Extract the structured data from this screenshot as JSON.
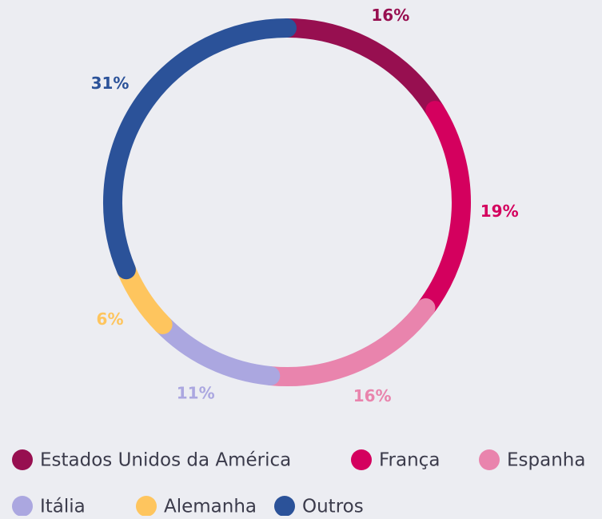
{
  "chart_data": {
    "type": "donut",
    "categories": [
      "Estados Unidos da América",
      "França",
      "Espanha",
      "Itália",
      "Alemanha",
      "Outros"
    ],
    "values": [
      16,
      19,
      16,
      11,
      6,
      31
    ],
    "value_labels": [
      "16%",
      "19%",
      "16%",
      "11%",
      "6%",
      "31%"
    ],
    "colors": [
      "#970f50",
      "#d4005e",
      "#e984ad",
      "#aba7e0",
      "#fec55e",
      "#2b5299"
    ],
    "legend": "bottom"
  }
}
